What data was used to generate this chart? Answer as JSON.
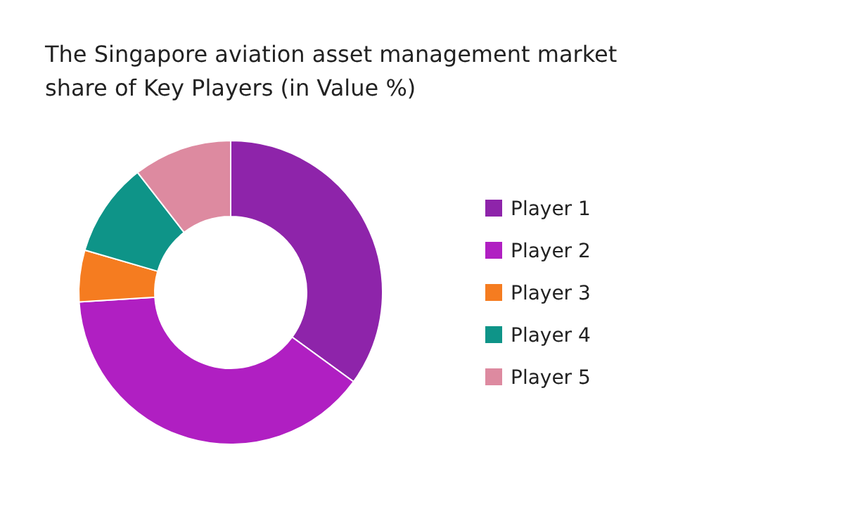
{
  "chart_data": {
    "type": "donut",
    "title": "The Singapore aviation asset management market share of Key Players (in Value %)",
    "categories": [
      "Player 1",
      "Player 2",
      "Player 3",
      "Player 4",
      "Player 5"
    ],
    "values": [
      35,
      39,
      5.5,
      10,
      10.5
    ],
    "colors": [
      "#8e24aa",
      "#b01fc2",
      "#f57c20",
      "#0e9488",
      "#dd8aa0"
    ],
    "legend": "right"
  }
}
